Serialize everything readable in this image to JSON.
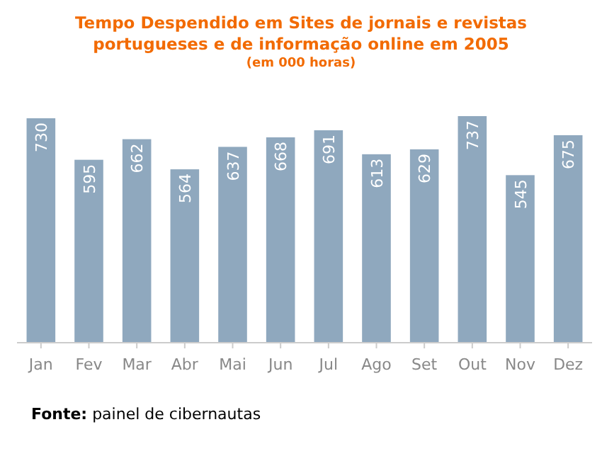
{
  "chart_data": {
    "type": "bar",
    "title": "Tempo Despendido em Sites de jornais e revistas portugueses e de informação online em 2005",
    "subtitle": "(em 000 horas)",
    "categories": [
      "Jan",
      "Fev",
      "Mar",
      "Abr",
      "Mai",
      "Jun",
      "Jul",
      "Ago",
      "Set",
      "Out",
      "Nov",
      "Dez"
    ],
    "values": [
      730,
      595,
      662,
      564,
      637,
      668,
      691,
      613,
      629,
      737,
      545,
      675
    ],
    "color": "#8fa8be",
    "data_labels": true,
    "tick_labels": "x",
    "grid": false,
    "annotations": [
      "Fonte: painel de cibernautas"
    ]
  }
}
